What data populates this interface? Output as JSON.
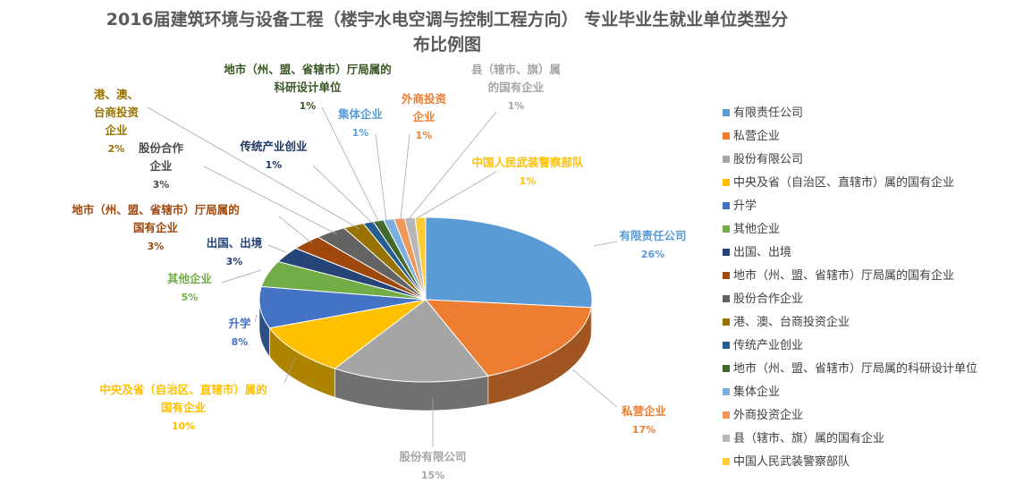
{
  "chart_data": {
    "type": "pie",
    "title_lines": [
      "2016届建筑环境与设备工程（楼宇水电空调与控制工程方向） 专业毕业生就业单位类型分",
      "布比例图"
    ],
    "legend_position": "right",
    "slices": [
      {
        "label": "有限责任公司",
        "value": 26,
        "pct_label": "26%",
        "color": "#5B9BD5",
        "label_lines": [
          "有限责任公司"
        ]
      },
      {
        "label": "私营企业",
        "value": 17,
        "pct_label": "17%",
        "color": "#ED7D31",
        "label_lines": [
          "私营企业"
        ]
      },
      {
        "label": "股份有限公司",
        "value": 15,
        "pct_label": "15%",
        "color": "#A5A5A5",
        "label_lines": [
          "股份有限公司"
        ]
      },
      {
        "label": "中央及省（自治区、直辖市）属的国有企业",
        "value": 10,
        "pct_label": "10%",
        "color": "#FFC000",
        "label_lines": [
          "中央及省（自治区、直辖市）属的",
          "国有企业"
        ]
      },
      {
        "label": "升学",
        "value": 8,
        "pct_label": "8%",
        "color": "#4472C4",
        "label_lines": [
          "升学"
        ]
      },
      {
        "label": "其他企业",
        "value": 5,
        "pct_label": "5%",
        "color": "#70AD47",
        "label_lines": [
          "其他企业"
        ]
      },
      {
        "label": "出国、出境",
        "value": 3,
        "pct_label": "3%",
        "color": "#264478",
        "label_lines": [
          "出国、出境"
        ]
      },
      {
        "label": "地市（州、盟、省辖市）厅局属的国有企业",
        "value": 3,
        "pct_label": "3%",
        "color": "#9E480E",
        "label_lines": [
          "地市（州、盟、省辖市）厅局属的",
          "国有企业"
        ]
      },
      {
        "label": "股份合作企业",
        "value": 3,
        "pct_label": "3%",
        "color": "#636363",
        "label_lines": [
          "股份合作",
          "企业"
        ]
      },
      {
        "label": "港、澳、台商投资企业",
        "value": 2,
        "pct_label": "2%",
        "color": "#997300",
        "label_lines": [
          "港、澳、",
          "台商投资",
          "企业"
        ]
      },
      {
        "label": "传统产业创业",
        "value": 1,
        "pct_label": "1%",
        "color": "#255E91",
        "label_lines": [
          "传统产业创业"
        ]
      },
      {
        "label": "地市（州、盟、省辖市）厅局属的科研设计单位",
        "value": 1,
        "pct_label": "1%",
        "color": "#43682B",
        "label_lines": [
          "地市（州、盟、省辖市）厅局属的",
          "科研设计单位"
        ]
      },
      {
        "label": "集体企业",
        "value": 1,
        "pct_label": "1%",
        "color": "#7CAFDD",
        "label_lines": [
          "集体企业"
        ]
      },
      {
        "label": "外商投资企业",
        "value": 1,
        "pct_label": "1%",
        "color": "#F1975A",
        "label_lines": [
          "外商投资",
          "企业"
        ]
      },
      {
        "label": "县（辖市、旗）属的国有企业",
        "value": 1,
        "pct_label": "1%",
        "color": "#B7B7B7",
        "label_lines": [
          "县（辖市、旗）属",
          "的国有企业"
        ]
      },
      {
        "label": "中国人民武装警察部队",
        "value": 1,
        "pct_label": "1%",
        "color": "#FFCD33",
        "label_lines": [
          "中国人民武装警察部队"
        ]
      }
    ]
  }
}
